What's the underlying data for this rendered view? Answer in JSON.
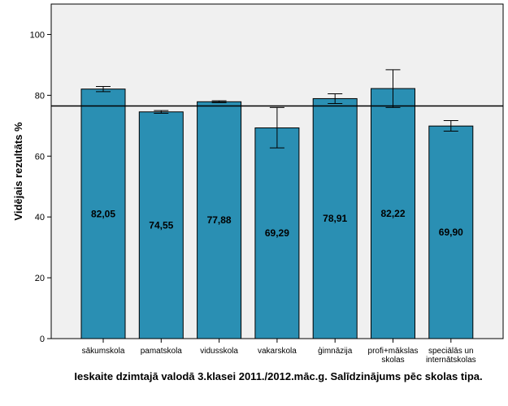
{
  "chart_data": {
    "type": "bar",
    "categories": [
      [
        "sākumskola"
      ],
      [
        "pamatskola"
      ],
      [
        "vidusskola"
      ],
      [
        "vakarskola"
      ],
      [
        "ģimnāzija"
      ],
      [
        "profi+mākslas",
        "skolas"
      ],
      [
        "speciālās un",
        "internātskolas"
      ]
    ],
    "values": [
      82.05,
      74.55,
      77.88,
      69.29,
      78.91,
      82.22,
      69.9
    ],
    "value_labels": [
      "82,05",
      "74,55",
      "77,88",
      "69,29",
      "78,91",
      "82,22",
      "69,90"
    ],
    "error_bars": [
      [
        81.2,
        82.9
      ],
      [
        74.1,
        75.0
      ],
      [
        77.6,
        78.2
      ],
      [
        62.7,
        76.0
      ],
      [
        77.3,
        80.5
      ],
      [
        76.0,
        88.4
      ],
      [
        68.2,
        71.7
      ]
    ],
    "reference_line": 76.5,
    "ylabel": "Vidējais rezultāts %",
    "xlabel": "Ieskaite dzimtajā valodā 3.klasei 2011./2012.māc.g. Salīdzinājums pēc skolas tipa.",
    "ylim": [
      0,
      110
    ],
    "yticks": [
      0,
      20,
      40,
      60,
      80,
      100
    ],
    "colors": {
      "bar": "#2a8fb3",
      "bar_stroke": "#000000",
      "plot_bg": "#f0f0f0",
      "line": "#000000"
    },
    "grid": false
  }
}
